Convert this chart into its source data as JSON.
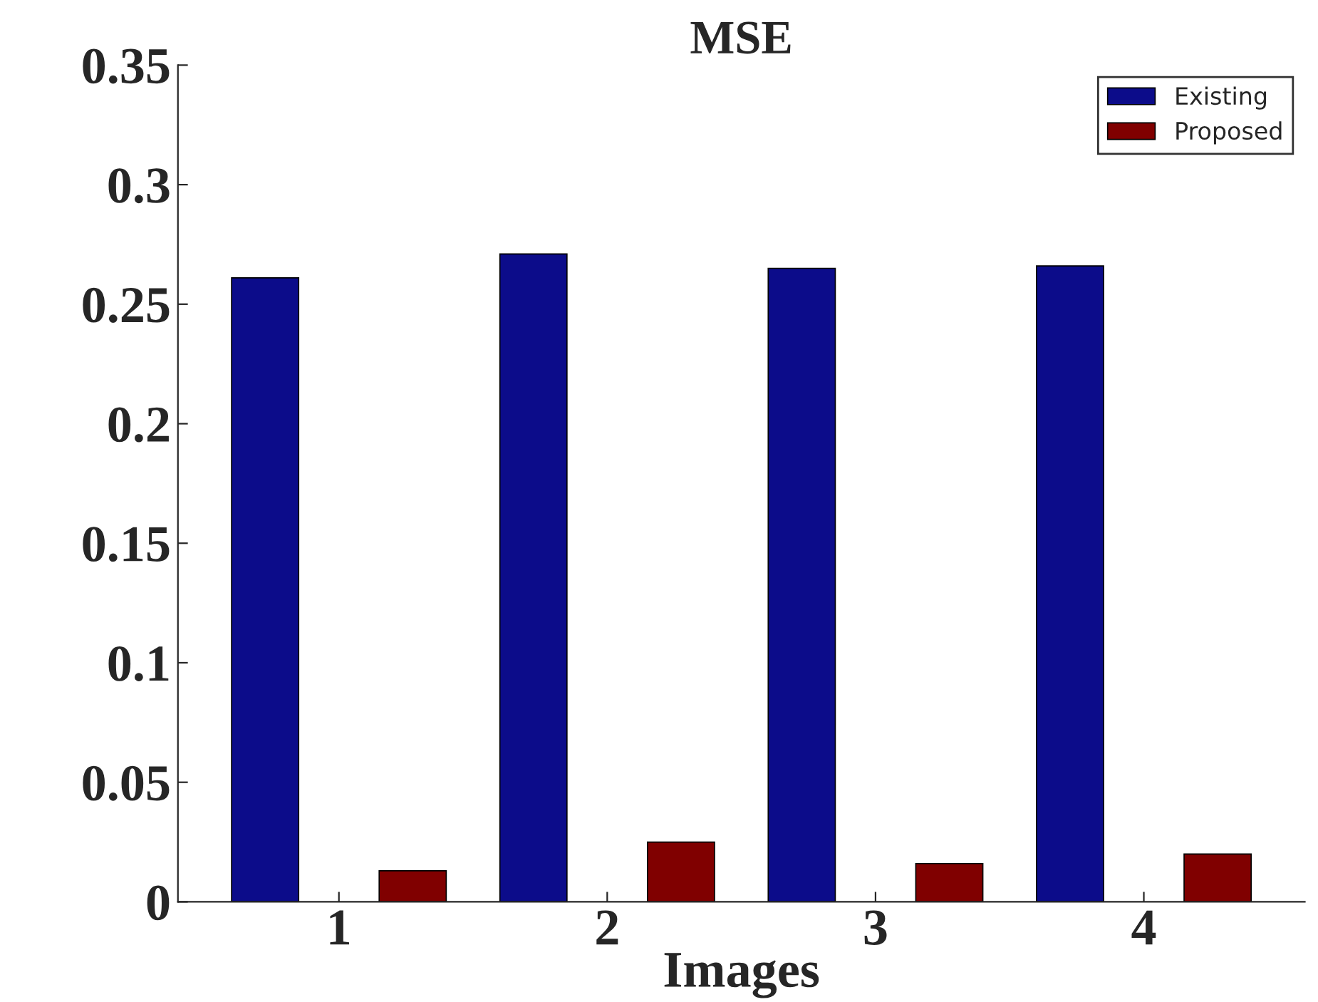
{
  "chart_data": {
    "type": "bar",
    "title": "MSE",
    "xlabel": "Images",
    "categories": [
      "1",
      "2",
      "3",
      "4"
    ],
    "series": [
      {
        "name": "Existing",
        "color": "#0c0c8a",
        "values": [
          0.261,
          0.271,
          0.265,
          0.266
        ]
      },
      {
        "name": "Proposed",
        "color": "#800000",
        "values": [
          0.013,
          0.025,
          0.016,
          0.02
        ]
      }
    ],
    "ylim": [
      0,
      0.35
    ],
    "yticks": [
      0,
      0.05,
      0.1,
      0.15,
      0.2,
      0.25,
      0.3,
      0.35
    ],
    "grid": false,
    "legend": "top right"
  }
}
